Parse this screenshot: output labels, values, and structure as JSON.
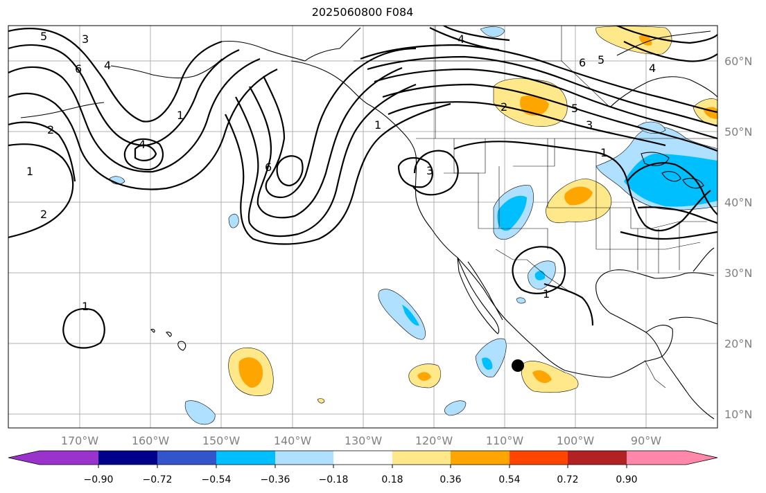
{
  "title": "2025060800 F084",
  "latitude_labels": [
    "60°N",
    "50°N",
    "40°N",
    "30°N",
    "20°N",
    "10°N"
  ],
  "longitude_labels": [
    "170°W",
    "160°W",
    "150°W",
    "140°W",
    "130°W",
    "120°W",
    "110°W",
    "100°W",
    "90°W"
  ],
  "colorbar": {
    "ticks": [
      "−0.90",
      "−0.72",
      "−0.54",
      "−0.36",
      "−0.18",
      "0.18",
      "0.36",
      "0.54",
      "0.72",
      "0.90"
    ],
    "colors": [
      "#9933cc",
      "#00008b",
      "#3355cc",
      "#00bfff",
      "#b0e0ff",
      "#ffffff",
      "#ffe88a",
      "#ffa500",
      "#ff4500",
      "#b22222",
      "#ff88aa"
    ]
  },
  "contour_labels": [
    "5",
    "3",
    "6",
    "4",
    "1",
    "2",
    "1",
    "4",
    "2",
    "6",
    "3",
    "1",
    "4",
    "6",
    "5",
    "4",
    "2",
    "5",
    "3",
    "1",
    "1",
    "1"
  ],
  "colors": {
    "grid": "#b0b0b0",
    "axis_label": "#808080",
    "light_blue": "#b0e0ff",
    "blue": "#00bfff",
    "light_yellow": "#ffe88a",
    "orange": "#ffa500"
  }
}
